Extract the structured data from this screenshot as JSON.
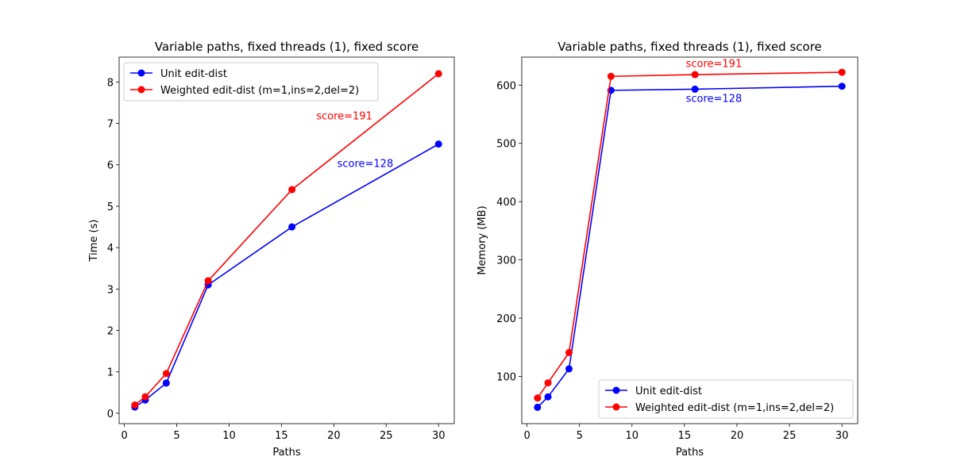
{
  "colors": {
    "unit": "#0000ff",
    "weighted": "#ff0000"
  },
  "chart_data": [
    {
      "type": "line",
      "title": "Variable paths, fixed threads (1), fixed score",
      "xlabel": "Paths",
      "ylabel": "Time (s)",
      "xlim": [
        -0.5,
        31.5
      ],
      "ylim": [
        -0.25,
        8.6
      ],
      "xticks": [
        0,
        5,
        10,
        15,
        20,
        25,
        30
      ],
      "xtick_labels": [
        "0",
        "5",
        "10",
        "15",
        "20",
        "25",
        "30"
      ],
      "yticks": [
        0,
        1,
        2,
        3,
        4,
        5,
        6,
        7,
        8
      ],
      "ytick_labels": [
        "0",
        "1",
        "2",
        "3",
        "4",
        "5",
        "6",
        "7",
        "8"
      ],
      "grid": false,
      "legend": "upper left",
      "x": [
        1,
        2,
        4,
        8,
        16,
        30
      ],
      "series": [
        {
          "name": "Unit edit-dist",
          "color": "#0000ff",
          "values": [
            0.15,
            0.32,
            0.73,
            3.1,
            4.5,
            6.5
          ]
        },
        {
          "name": "Weighted edit-dist (m=1,ins=2,del=2)",
          "color": "#ff0000",
          "values": [
            0.2,
            0.4,
            0.96,
            3.2,
            5.4,
            8.2
          ]
        }
      ],
      "annotations": [
        {
          "text": "score=191",
          "color": "#ff0000",
          "x": 21,
          "y": 7.1
        },
        {
          "text": "score=128",
          "color": "#0000ff",
          "x": 23,
          "y": 5.95
        }
      ]
    },
    {
      "type": "line",
      "title": "Variable paths, fixed threads (1), fixed score",
      "xlabel": "Paths",
      "ylabel": "Memory (MB)",
      "xlim": [
        -0.5,
        31.5
      ],
      "ylim": [
        19,
        648
      ],
      "xticks": [
        0,
        5,
        10,
        15,
        20,
        25,
        30
      ],
      "xtick_labels": [
        "0",
        "5",
        "10",
        "15",
        "20",
        "25",
        "30"
      ],
      "yticks": [
        100,
        200,
        300,
        400,
        500,
        600
      ],
      "ytick_labels": [
        "100",
        "200",
        "300",
        "400",
        "500",
        "600"
      ],
      "grid": false,
      "legend": "lower right",
      "x": [
        1,
        2,
        4,
        8,
        16,
        30
      ],
      "series": [
        {
          "name": "Unit edit-dist",
          "color": "#0000ff",
          "values": [
            47,
            65,
            113,
            591,
            593,
            598
          ]
        },
        {
          "name": "Weighted edit-dist (m=1,ins=2,del=2)",
          "color": "#ff0000",
          "values": [
            63,
            89,
            141,
            615,
            618,
            622
          ]
        }
      ],
      "annotations": [
        {
          "text": "score=191",
          "color": "#ff0000",
          "x": 17.8,
          "y": 631
        },
        {
          "text": "score=128",
          "color": "#0000ff",
          "x": 17.8,
          "y": 571
        }
      ]
    }
  ]
}
